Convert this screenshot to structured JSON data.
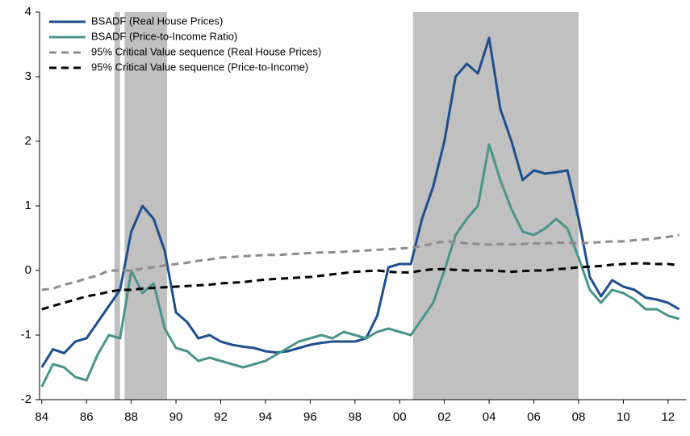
{
  "chart_data": {
    "type": "line",
    "x": [
      1984,
      1984.5,
      1985,
      1985.5,
      1986,
      1986.5,
      1987,
      1987.5,
      1988,
      1988.5,
      1989,
      1989.5,
      1990,
      1990.5,
      1991,
      1991.5,
      1992,
      1992.5,
      1993,
      1993.5,
      1994,
      1994.5,
      1995,
      1995.5,
      1996,
      1996.5,
      1997,
      1997.5,
      1998,
      1998.5,
      1999,
      1999.5,
      2000,
      2000.5,
      2001,
      2001.5,
      2002,
      2002.5,
      2003,
      2003.5,
      2004,
      2004.5,
      2005,
      2005.5,
      2006,
      2006.5,
      2007,
      2007.5,
      2008,
      2008.5,
      2009,
      2009.5,
      2010,
      2010.5,
      2011,
      2011.5,
      2012,
      2012.5
    ],
    "series": [
      {
        "name": "BSADF (Real House Prices)",
        "color": "#1f4e8c",
        "dash": false,
        "values": [
          -1.5,
          -1.22,
          -1.28,
          -1.1,
          -1.05,
          -0.8,
          -0.55,
          -0.3,
          0.6,
          1.0,
          0.8,
          0.3,
          -0.65,
          -0.8,
          -1.05,
          -1.0,
          -1.1,
          -1.15,
          -1.18,
          -1.2,
          -1.25,
          -1.27,
          -1.25,
          -1.2,
          -1.15,
          -1.12,
          -1.1,
          -1.1,
          -1.1,
          -1.05,
          -0.7,
          0.05,
          0.1,
          0.1,
          0.8,
          1.3,
          2.0,
          3.0,
          3.2,
          3.05,
          3.6,
          2.5,
          2.0,
          1.4,
          1.55,
          1.5,
          1.52,
          1.55,
          0.8,
          -0.1,
          -0.4,
          -0.15,
          -0.25,
          -0.3,
          -0.42,
          -0.45,
          -0.5,
          -0.6
        ]
      },
      {
        "name": "BSADF (Price-to-Income Ratio)",
        "color": "#4a9488",
        "dash": false,
        "values": [
          -1.8,
          -1.45,
          -1.5,
          -1.65,
          -1.7,
          -1.3,
          -1.0,
          -1.05,
          0.0,
          -0.35,
          -0.2,
          -0.9,
          -1.2,
          -1.25,
          -1.4,
          -1.35,
          -1.4,
          -1.45,
          -1.5,
          -1.45,
          -1.4,
          -1.3,
          -1.2,
          -1.1,
          -1.05,
          -1.0,
          -1.05,
          -0.95,
          -1.0,
          -1.05,
          -0.95,
          -0.9,
          -0.95,
          -1.0,
          -0.75,
          -0.5,
          0.0,
          0.55,
          0.8,
          1.0,
          1.95,
          1.4,
          0.95,
          0.6,
          0.55,
          0.65,
          0.8,
          0.65,
          0.2,
          -0.3,
          -0.5,
          -0.3,
          -0.35,
          -0.45,
          -0.6,
          -0.6,
          -0.7,
          -0.75
        ]
      },
      {
        "name": "95% Critical Value sequence (Real House Prices)",
        "color": "#8c8c8c",
        "dash": true,
        "values": [
          -0.3,
          -0.28,
          -0.22,
          -0.18,
          -0.12,
          -0.08,
          0.0,
          0.0,
          0.0,
          0.03,
          0.05,
          0.08,
          0.1,
          0.12,
          0.15,
          0.17,
          0.2,
          0.21,
          0.22,
          0.23,
          0.24,
          0.24,
          0.25,
          0.26,
          0.27,
          0.28,
          0.28,
          0.29,
          0.3,
          0.31,
          0.32,
          0.33,
          0.34,
          0.35,
          0.38,
          0.42,
          0.45,
          0.44,
          0.42,
          0.41,
          0.4,
          0.41,
          0.4,
          0.41,
          0.42,
          0.42,
          0.43,
          0.43,
          0.42,
          0.43,
          0.44,
          0.45,
          0.45,
          0.47,
          0.48,
          0.5,
          0.52,
          0.55
        ]
      },
      {
        "name": "95% Critical Value sequence (Price-to-Income)",
        "color": "#000000",
        "dash": true,
        "values": [
          -0.6,
          -0.55,
          -0.5,
          -0.45,
          -0.4,
          -0.37,
          -0.33,
          -0.3,
          -0.3,
          -0.28,
          -0.27,
          -0.26,
          -0.25,
          -0.24,
          -0.23,
          -0.22,
          -0.2,
          -0.19,
          -0.18,
          -0.16,
          -0.14,
          -0.13,
          -0.12,
          -0.11,
          -0.1,
          -0.08,
          -0.06,
          -0.04,
          -0.02,
          -0.01,
          0.0,
          -0.02,
          -0.03,
          -0.03,
          0.0,
          0.02,
          0.02,
          0.01,
          0.0,
          0.0,
          0.0,
          -0.01,
          -0.02,
          -0.01,
          0.0,
          0.0,
          0.02,
          0.03,
          0.05,
          0.06,
          0.07,
          0.09,
          0.1,
          0.11,
          0.11,
          0.1,
          0.1,
          0.08
        ]
      }
    ],
    "shaded_periods": [
      [
        1987.25,
        1987.5
      ],
      [
        1987.7,
        1989.6
      ],
      [
        2000.6,
        2008.0
      ]
    ],
    "shade_color": "#c0c0c0",
    "xlim": [
      1983.9,
      2012.8
    ],
    "xticks": [
      {
        "value": 1984,
        "label": "84"
      },
      {
        "value": 1986,
        "label": "86"
      },
      {
        "value": 1988,
        "label": "88"
      },
      {
        "value": 1990,
        "label": "90"
      },
      {
        "value": 1992,
        "label": "92"
      },
      {
        "value": 1994,
        "label": "94"
      },
      {
        "value": 1996,
        "label": "96"
      },
      {
        "value": 1998,
        "label": "98"
      },
      {
        "value": 2000,
        "label": "00"
      },
      {
        "value": 2002,
        "label": "02"
      },
      {
        "value": 2004,
        "label": "04"
      },
      {
        "value": 2006,
        "label": "06"
      },
      {
        "value": 2008,
        "label": "08"
      },
      {
        "value": 2010,
        "label": "10"
      },
      {
        "value": 2012,
        "label": "12"
      }
    ],
    "ylim": [
      -2,
      4
    ],
    "yticks": [
      -2,
      -1,
      0,
      1,
      2,
      3,
      4
    ],
    "grid": false,
    "legend": "top-left"
  }
}
